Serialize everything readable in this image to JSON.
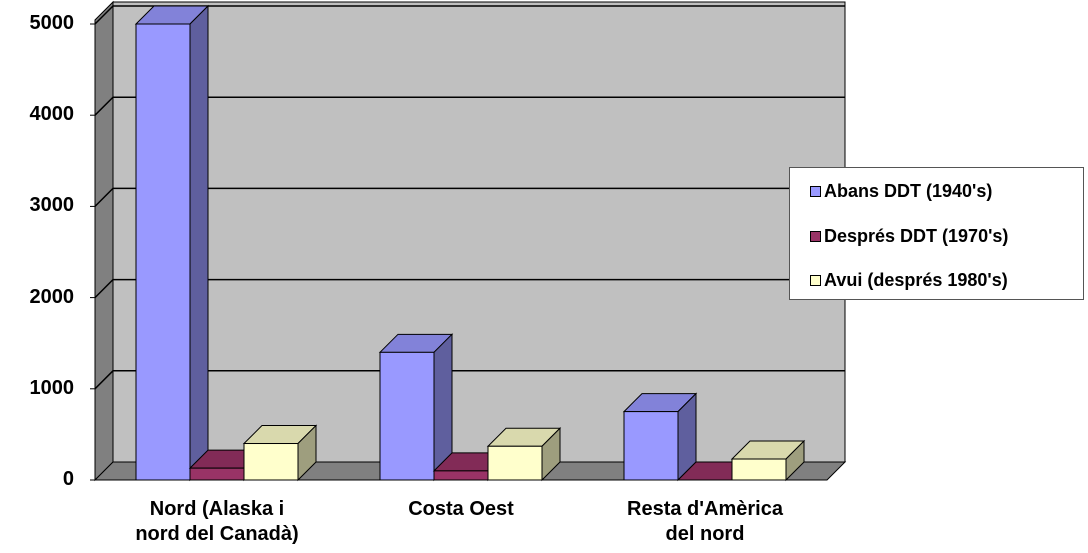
{
  "chart_data": {
    "type": "bar",
    "categories": [
      "Nord (Alaska i nord del Canadà)",
      "Costa Oest",
      "Resta d'Amèrica del nord"
    ],
    "category_lines": [
      [
        "Nord (Alaska i",
        "nord del Canadà)"
      ],
      [
        "Costa Oest"
      ],
      [
        "Resta d'Amèrica",
        "del nord"
      ]
    ],
    "series": [
      {
        "name": "Abans DDT (1940's)",
        "values": [
          5000,
          1400,
          750
        ],
        "color": "#9999ff"
      },
      {
        "name": "Després DDT (1970's)",
        "values": [
          130,
          100,
          0
        ],
        "color": "#993366"
      },
      {
        "name": "Avui (després 1980's)",
        "values": [
          400,
          370,
          230
        ],
        "color": "#ffffcc"
      }
    ],
    "ylim": [
      0,
      5000
    ],
    "yticks": [
      "0",
      "1000",
      "2000",
      "3000",
      "4000",
      "5000"
    ],
    "grid": true,
    "legend_position": "right",
    "three_d": true,
    "wall_color": "#c0c0c0"
  }
}
